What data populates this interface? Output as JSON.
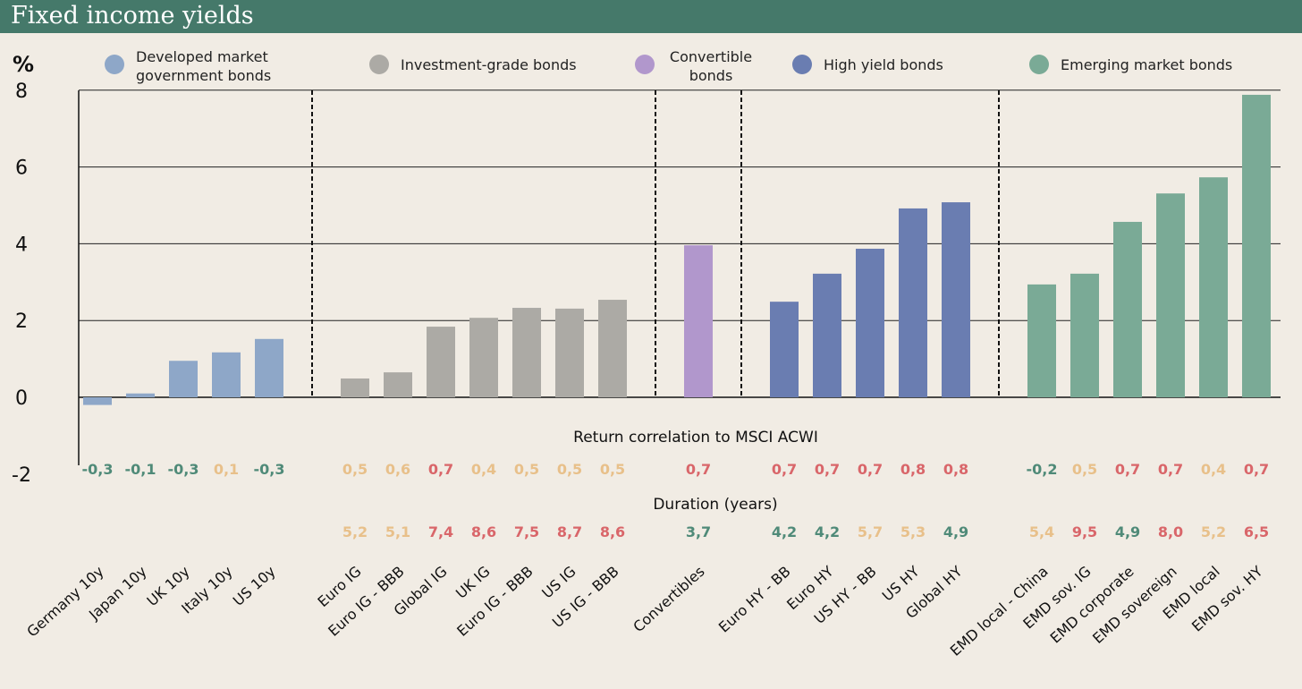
{
  "title": "Fixed income yields",
  "chart_data": {
    "type": "bar",
    "ylabel": "%",
    "ylim": [
      -2,
      8
    ],
    "yticks": [
      -2,
      0,
      2,
      4,
      6,
      8
    ],
    "grid": true,
    "legend_position": "top",
    "legend": [
      {
        "name": "Developed market government bonds",
        "lines": [
          "Developed market",
          "government bonds"
        ],
        "color": "#8ea7c8"
      },
      {
        "name": "Investment-grade bonds",
        "lines": [
          "Investment-grade bonds"
        ],
        "color": "#acaaa5"
      },
      {
        "name": "Convertible bonds",
        "lines": [
          "Convertible",
          "bonds"
        ],
        "color": "#b197cc"
      },
      {
        "name": "High yield bonds",
        "lines": [
          "High yield bonds"
        ],
        "color": "#6a7db1"
      },
      {
        "name": "Emerging market bonds",
        "lines": [
          "Emerging market bonds"
        ],
        "color": "#7aaa96"
      }
    ],
    "correlation_label": "Return correlation to MSCI ACWI",
    "duration_label": "Duration (years)",
    "value_colors": {
      "green": "#4f8a78",
      "orange": "#e8c08a",
      "red": "#d9666a"
    },
    "groups": [
      {
        "series": 0,
        "items": [
          {
            "label": "Germany 10y",
            "value": -0.2,
            "corr": "-0,3",
            "corr_color": "green"
          },
          {
            "label": "Japan 10y",
            "value": 0.1,
            "corr": "-0,1",
            "corr_color": "green"
          },
          {
            "label": "UK 10y",
            "value": 0.95,
            "corr": "-0,3",
            "corr_color": "green"
          },
          {
            "label": "Italy 10y",
            "value": 1.17,
            "corr": "0,1",
            "corr_color": "orange"
          },
          {
            "label": "US 10y",
            "value": 1.52,
            "corr": "-0,3",
            "corr_color": "green"
          }
        ]
      },
      {
        "series": 1,
        "items": [
          {
            "label": "Euro IG",
            "value": 0.49,
            "corr": "0,5",
            "corr_color": "orange",
            "dur": "5,2",
            "dur_color": "orange"
          },
          {
            "label": "Euro IG - BBB",
            "value": 0.65,
            "corr": "0,6",
            "corr_color": "orange",
            "dur": "5,1",
            "dur_color": "orange"
          },
          {
            "label": "Global IG",
            "value": 1.84,
            "corr": "0,7",
            "corr_color": "red",
            "dur": "7,4",
            "dur_color": "red"
          },
          {
            "label": "UK IG",
            "value": 2.07,
            "corr": "0,4",
            "corr_color": "orange",
            "dur": "8,6",
            "dur_color": "red"
          },
          {
            "label": "Euro IG - BBB",
            "value": 2.33,
            "corr": "0,5",
            "corr_color": "orange",
            "dur": "7,5",
            "dur_color": "red"
          },
          {
            "label": "US IG",
            "value": 2.31,
            "corr": "0,5",
            "corr_color": "orange",
            "dur": "8,7",
            "dur_color": "red"
          },
          {
            "label": "US IG - BBB",
            "value": 2.54,
            "corr": "0,5",
            "corr_color": "orange",
            "dur": "8,6",
            "dur_color": "red"
          }
        ]
      },
      {
        "series": 2,
        "items": [
          {
            "label": "Convertibles",
            "value": 3.96,
            "corr": "0,7",
            "corr_color": "red",
            "dur": "3,7",
            "dur_color": "green"
          }
        ]
      },
      {
        "series": 3,
        "items": [
          {
            "label": "Euro HY - BB",
            "value": 2.49,
            "corr": "0,7",
            "corr_color": "red",
            "dur": "4,2",
            "dur_color": "green"
          },
          {
            "label": "Euro HY",
            "value": 3.22,
            "corr": "0,7",
            "corr_color": "red",
            "dur": "4,2",
            "dur_color": "green"
          },
          {
            "label": "US HY - BB",
            "value": 3.87,
            "corr": "0,7",
            "corr_color": "red",
            "dur": "5,7",
            "dur_color": "orange"
          },
          {
            "label": "US HY",
            "value": 4.92,
            "corr": "0,8",
            "corr_color": "red",
            "dur": "5,3",
            "dur_color": "orange"
          },
          {
            "label": "Global HY",
            "value": 5.08,
            "corr": "0,8",
            "corr_color": "red",
            "dur": "4,9",
            "dur_color": "green"
          }
        ]
      },
      {
        "series": 4,
        "items": [
          {
            "label": "EMD local  - China",
            "value": 2.94,
            "corr": "-0,2",
            "corr_color": "green",
            "dur": "5,4",
            "dur_color": "orange"
          },
          {
            "label": "EMD sov. IG",
            "value": 3.22,
            "corr": "0,5",
            "corr_color": "orange",
            "dur": "9,5",
            "dur_color": "red"
          },
          {
            "label": "EMD corporate",
            "value": 4.57,
            "corr": "0,7",
            "corr_color": "red",
            "dur": "4,9",
            "dur_color": "green"
          },
          {
            "label": "EMD sovereign",
            "value": 5.31,
            "corr": "0,7",
            "corr_color": "red",
            "dur": "8,0",
            "dur_color": "red"
          },
          {
            "label": "EMD local",
            "value": 5.73,
            "corr": "0,4",
            "corr_color": "orange",
            "dur": "5,2",
            "dur_color": "orange"
          },
          {
            "label": "EMD sov. HY",
            "value": 7.88,
            "corr": "0,7",
            "corr_color": "red",
            "dur": "6,5",
            "dur_color": "red"
          }
        ]
      }
    ]
  }
}
